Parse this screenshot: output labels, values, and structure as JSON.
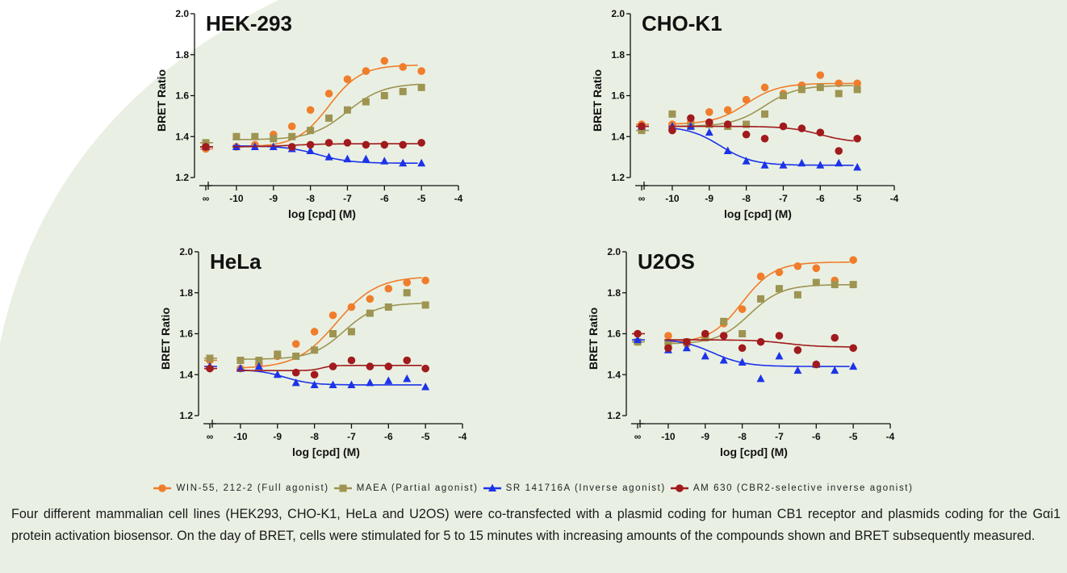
{
  "colors": {
    "background_tint": "#e9f0e3",
    "series": {
      "win": "#f07d2b",
      "maea": "#9e9452",
      "sr": "#1c33e8",
      "am": "#a11a1d"
    }
  },
  "legend": [
    {
      "key": "win",
      "label": "WIN-55, 212-2 (Full agonist)",
      "marker": "circle"
    },
    {
      "key": "maea",
      "label": "MAEA (Partial agonist)",
      "marker": "square"
    },
    {
      "key": "sr",
      "label": "SR 141716A (Inverse agonist)",
      "marker": "triangle"
    },
    {
      "key": "am",
      "label": "AM 630 (CBR2-selective inverse agonist)",
      "marker": "circle"
    }
  ],
  "caption": "Four different mammalian cell lines (HEK293, CHO-K1, HeLa and U2OS) were co-transfected with a plasmid coding for human CB1 receptor and plasmids coding for the Gαi1 protein activation biosensor. On the day of BRET, cells were stimulated for 5 to 15 minutes with increasing amounts of the compounds shown and BRET subsequently measured.",
  "chart_data": [
    {
      "type": "scatter",
      "title": "HEK-293",
      "xlabel": "log [cpd] (M)",
      "ylabel": "BRET Ratio",
      "break_label": "∞",
      "xlim": [
        -10.5,
        -4
      ],
      "ylim": [
        1.2,
        2.0
      ],
      "xticks": [
        "-10",
        "-9",
        "-8",
        "-7",
        "-6",
        "-5",
        "-4"
      ],
      "yticks": [
        "1.2",
        "1.4",
        "1.6",
        "1.8",
        "2.0"
      ],
      "series": [
        {
          "key": "win",
          "marker": "circle",
          "baseline": 1.34,
          "x": [
            -10,
            -9.5,
            -9,
            -8.5,
            -8,
            -7.5,
            -7,
            -6.5,
            -6,
            -5.5,
            -5
          ],
          "y": [
            1.35,
            1.36,
            1.41,
            1.45,
            1.53,
            1.61,
            1.68,
            1.72,
            1.77,
            1.74,
            1.72
          ],
          "fit": {
            "bottom": 1.35,
            "top": 1.75,
            "logEC50": -7.5,
            "hill": 1.0
          }
        },
        {
          "key": "maea",
          "marker": "square",
          "baseline": 1.37,
          "x": [
            -10,
            -9.5,
            -9,
            -8.5,
            -8,
            -7.5,
            -7,
            -6.5,
            -6,
            -5.5,
            -5
          ],
          "y": [
            1.4,
            1.4,
            1.39,
            1.4,
            1.43,
            1.49,
            1.53,
            1.57,
            1.6,
            1.62,
            1.64
          ],
          "fit": {
            "bottom": 1.385,
            "top": 1.66,
            "logEC50": -7.0,
            "hill": 0.9
          }
        },
        {
          "key": "sr",
          "marker": "triangle",
          "baseline": 1.35,
          "x": [
            -10,
            -9.5,
            -9,
            -8.5,
            -8,
            -7.5,
            -7,
            -6.5,
            -6,
            -5.5,
            -5
          ],
          "y": [
            1.35,
            1.35,
            1.35,
            1.34,
            1.33,
            1.3,
            1.29,
            1.29,
            1.28,
            1.27,
            1.27
          ],
          "fit": {
            "bottom": 1.355,
            "top": 1.27,
            "logEC50": -7.8,
            "hill": 1.0
          }
        },
        {
          "key": "am",
          "marker": "circle",
          "baseline": 1.35,
          "x": [
            -8.5,
            -8,
            -7.5,
            -7,
            -6.5,
            -6,
            -5.5,
            -5
          ],
          "y": [
            1.35,
            1.36,
            1.37,
            1.37,
            1.36,
            1.36,
            1.36,
            1.37
          ],
          "fit": {
            "bottom": 1.35,
            "top": 1.365,
            "logEC50": -8.5,
            "hill": 1.0
          }
        }
      ]
    },
    {
      "type": "scatter",
      "title": "CHO-K1",
      "xlabel": "log [cpd] (M)",
      "ylabel": "BRET Ratio",
      "break_label": "∞",
      "xlim": [
        -10.5,
        -4
      ],
      "ylim": [
        1.2,
        2.0
      ],
      "xticks": [
        "-10",
        "-9",
        "-8",
        "-7",
        "-6",
        "-5",
        "-4"
      ],
      "yticks": [
        "1.2",
        "1.4",
        "1.6",
        "1.8",
        "2.0"
      ],
      "series": [
        {
          "key": "win",
          "marker": "circle",
          "baseline": 1.46,
          "x": [
            -10,
            -9.5,
            -9,
            -8.5,
            -8,
            -7.5,
            -7,
            -6.5,
            -6,
            -5.5,
            -5
          ],
          "y": [
            1.46,
            1.47,
            1.52,
            1.53,
            1.58,
            1.64,
            1.61,
            1.65,
            1.7,
            1.66,
            1.66
          ],
          "fit": {
            "bottom": 1.46,
            "top": 1.66,
            "logEC50": -8.0,
            "hill": 1.0
          }
        },
        {
          "key": "maea",
          "marker": "square",
          "baseline": 1.43,
          "x": [
            -10,
            -9.5,
            -9,
            -8.5,
            -8,
            -7.5,
            -7,
            -6.5,
            -6,
            -5.5,
            -5
          ],
          "y": [
            1.51,
            1.45,
            1.46,
            1.45,
            1.46,
            1.51,
            1.6,
            1.63,
            1.64,
            1.61,
            1.63
          ],
          "fit": {
            "bottom": 1.45,
            "top": 1.65,
            "logEC50": -7.5,
            "hill": 1.0
          }
        },
        {
          "key": "sr",
          "marker": "triangle",
          "baseline": 1.45,
          "x": [
            -10,
            -9.5,
            -9,
            -8.5,
            -8,
            -7.5,
            -7,
            -6.5,
            -6,
            -5.5,
            -5
          ],
          "y": [
            1.45,
            1.45,
            1.42,
            1.33,
            1.28,
            1.26,
            1.26,
            1.27,
            1.26,
            1.27,
            1.25
          ],
          "fit": {
            "bottom": 1.45,
            "top": 1.26,
            "logEC50": -8.7,
            "hill": 1.0
          }
        },
        {
          "key": "am",
          "marker": "circle",
          "baseline": 1.45,
          "x": [
            -10,
            -9.5,
            -9,
            -8.5,
            -8,
            -7.5,
            -7,
            -6.5,
            -6,
            -5.5,
            -5
          ],
          "y": [
            1.43,
            1.49,
            1.47,
            1.46,
            1.41,
            1.39,
            1.45,
            1.44,
            1.42,
            1.33,
            1.39
          ],
          "fit": {
            "bottom": 1.45,
            "top": 1.37,
            "logEC50": -6.0,
            "hill": 1.0
          }
        }
      ]
    },
    {
      "type": "scatter",
      "title": "HeLa",
      "xlabel": "log [cpd] (M)",
      "ylabel": "BRET Ratio",
      "break_label": "∞",
      "xlim": [
        -10.5,
        -4
      ],
      "ylim": [
        1.2,
        2.0
      ],
      "xticks": [
        "-10",
        "-9",
        "-8",
        "-7",
        "-6",
        "-5",
        "-4"
      ],
      "yticks": [
        "1.2",
        "1.4",
        "1.6",
        "1.8",
        "2.0"
      ],
      "series": [
        {
          "key": "win",
          "marker": "circle",
          "baseline": 1.47,
          "x": [
            -10,
            -9.5,
            -9,
            -8.5,
            -8,
            -7.5,
            -7,
            -6.5,
            -6,
            -5.5,
            -5
          ],
          "y": [
            1.43,
            1.45,
            1.49,
            1.55,
            1.61,
            1.69,
            1.73,
            1.77,
            1.82,
            1.85,
            1.86
          ],
          "fit": {
            "bottom": 1.43,
            "top": 1.88,
            "logEC50": -7.4,
            "hill": 0.8
          }
        },
        {
          "key": "maea",
          "marker": "square",
          "baseline": 1.48,
          "x": [
            -10,
            -9.5,
            -9,
            -8.5,
            -8,
            -7.5,
            -7,
            -6.5,
            -6,
            -5.5,
            -5
          ],
          "y": [
            1.47,
            1.47,
            1.5,
            1.49,
            1.52,
            1.6,
            1.61,
            1.7,
            1.73,
            1.8,
            1.74
          ],
          "fit": {
            "bottom": 1.475,
            "top": 1.75,
            "logEC50": -7.2,
            "hill": 1.0
          }
        },
        {
          "key": "sr",
          "marker": "triangle",
          "baseline": 1.44,
          "x": [
            -10,
            -9.5,
            -9,
            -8.5,
            -8,
            -7.5,
            -7,
            -6.5,
            -6,
            -5.5,
            -5
          ],
          "y": [
            1.43,
            1.44,
            1.4,
            1.36,
            1.35,
            1.35,
            1.35,
            1.36,
            1.37,
            1.38,
            1.34
          ],
          "fit": {
            "bottom": 1.425,
            "top": 1.35,
            "logEC50": -8.8,
            "hill": 1.2
          }
        },
        {
          "key": "am",
          "marker": "circle",
          "baseline": 1.43,
          "x": [
            -8.5,
            -8,
            -7.5,
            -7,
            -6.5,
            -6,
            -5.5,
            -5
          ],
          "y": [
            1.41,
            1.4,
            1.44,
            1.47,
            1.44,
            1.44,
            1.47,
            1.43
          ],
          "fit": {
            "bottom": 1.42,
            "top": 1.445,
            "logEC50": -7.8,
            "hill": 3.0
          }
        }
      ]
    },
    {
      "type": "scatter",
      "title": "U2OS",
      "xlabel": "log [cpd] (M)",
      "ylabel": "BRET Ratio",
      "break_label": "∞",
      "xlim": [
        -10.5,
        -4
      ],
      "ylim": [
        1.2,
        2.0
      ],
      "xticks": [
        "-10",
        "-9",
        "-8",
        "-7",
        "-6",
        "-5",
        "-4"
      ],
      "yticks": [
        "1.2",
        "1.4",
        "1.6",
        "1.8",
        "2.0"
      ],
      "series": [
        {
          "key": "win",
          "marker": "circle",
          "baseline": 1.56,
          "x": [
            -10,
            -9.5,
            -9,
            -8.5,
            -8,
            -7.5,
            -7,
            -6.5,
            -6,
            -5.5,
            -5
          ],
          "y": [
            1.59,
            1.55,
            1.58,
            1.65,
            1.72,
            1.88,
            1.9,
            1.93,
            1.92,
            1.86,
            1.96
          ],
          "fit": {
            "bottom": 1.555,
            "top": 1.95,
            "logEC50": -8.0,
            "hill": 1.0
          }
        },
        {
          "key": "maea",
          "marker": "square",
          "baseline": 1.56,
          "x": [
            -10,
            -9.5,
            -9,
            -8.5,
            -8,
            -7.5,
            -7,
            -6.5,
            -6,
            -5.5,
            -5
          ],
          "y": [
            1.55,
            1.56,
            1.58,
            1.66,
            1.6,
            1.77,
            1.82,
            1.79,
            1.85,
            1.84,
            1.84
          ],
          "fit": {
            "bottom": 1.55,
            "top": 1.84,
            "logEC50": -7.8,
            "hill": 1.0
          }
        },
        {
          "key": "sr",
          "marker": "triangle",
          "baseline": 1.57,
          "x": [
            -10,
            -9.5,
            -9,
            -8.5,
            -8,
            -7.5,
            -7,
            -6.5,
            -6,
            -5.5,
            -5
          ],
          "y": [
            1.52,
            1.53,
            1.49,
            1.47,
            1.46,
            1.38,
            1.49,
            1.42,
            1.45,
            1.42,
            1.44
          ],
          "fit": {
            "bottom": 1.575,
            "top": 1.44,
            "logEC50": -8.8,
            "hill": 1.0
          }
        },
        {
          "key": "am",
          "marker": "circle",
          "baseline": 1.6,
          "x": [
            -10,
            -9.5,
            -9,
            -8.5,
            -8,
            -7.5,
            -7,
            -6.5,
            -6,
            -5.5,
            -5
          ],
          "y": [
            1.53,
            1.56,
            1.6,
            1.59,
            1.53,
            1.56,
            1.59,
            1.52,
            1.45,
            1.58,
            1.53
          ],
          "fit": {
            "bottom": 1.57,
            "top": 1.535,
            "logEC50": -6.8,
            "hill": 1.0
          }
        }
      ]
    }
  ]
}
